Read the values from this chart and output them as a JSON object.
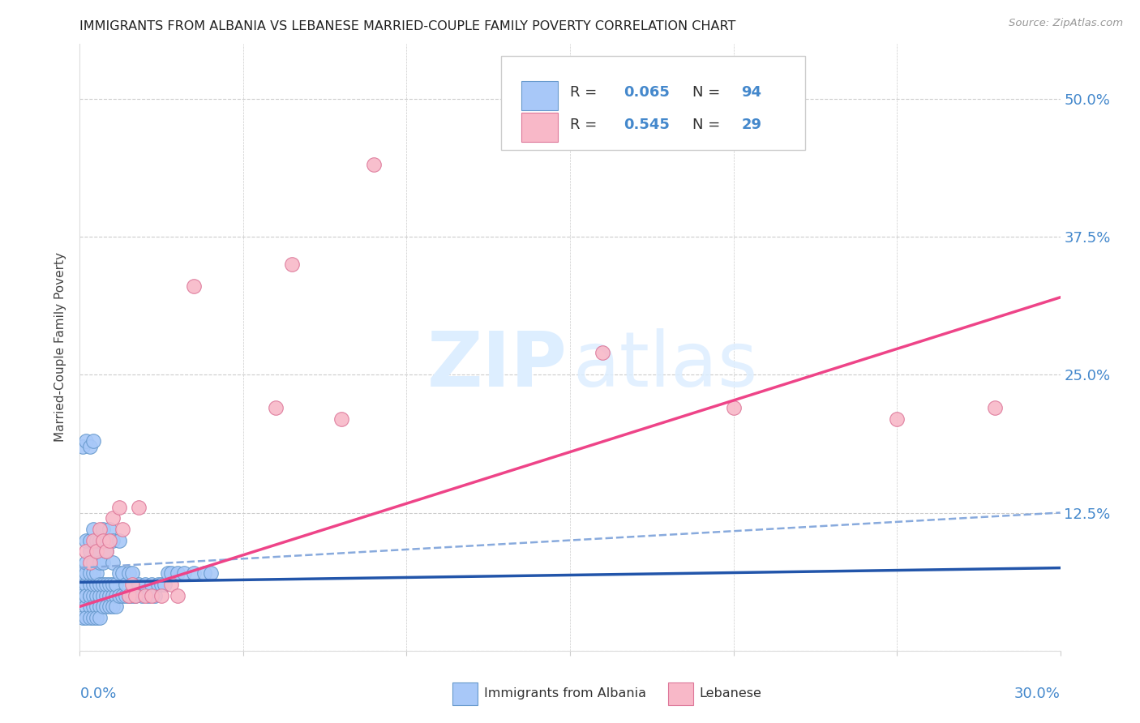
{
  "title": "IMMIGRANTS FROM ALBANIA VS LEBANESE MARRIED-COUPLE FAMILY POVERTY CORRELATION CHART",
  "source": "Source: ZipAtlas.com",
  "ylabel": "Married-Couple Family Poverty",
  "ytick_labels": [
    "",
    "12.5%",
    "25.0%",
    "37.5%",
    "50.0%"
  ],
  "ytick_values": [
    0.0,
    0.125,
    0.25,
    0.375,
    0.5
  ],
  "xlim": [
    0.0,
    0.3
  ],
  "ylim": [
    0.0,
    0.55
  ],
  "albania_R": 0.065,
  "albania_N": 94,
  "lebanese_R": 0.545,
  "lebanese_N": 29,
  "albania_color": "#a8c8f8",
  "albania_edge_color": "#6699cc",
  "albanian_line_color": "#2255aa",
  "lebanese_color": "#f8b8c8",
  "lebanese_edge_color": "#dd7799",
  "lebanese_line_color": "#ee4488",
  "dash_line_color": "#88aadd",
  "watermark_zip": "ZIP",
  "watermark_atlas": "atlas",
  "watermark_color": "#ddeeff",
  "legend_label_albania": "Immigrants from Albania",
  "legend_label_lebanese": "Lebanese",
  "albania_scatter_x": [
    0.001,
    0.001,
    0.001,
    0.001,
    0.002,
    0.002,
    0.002,
    0.002,
    0.002,
    0.002,
    0.002,
    0.003,
    0.003,
    0.003,
    0.003,
    0.003,
    0.003,
    0.003,
    0.004,
    0.004,
    0.004,
    0.004,
    0.004,
    0.004,
    0.005,
    0.005,
    0.005,
    0.005,
    0.005,
    0.005,
    0.006,
    0.006,
    0.006,
    0.006,
    0.006,
    0.007,
    0.007,
    0.007,
    0.007,
    0.008,
    0.008,
    0.008,
    0.008,
    0.009,
    0.009,
    0.009,
    0.01,
    0.01,
    0.01,
    0.01,
    0.011,
    0.011,
    0.011,
    0.012,
    0.012,
    0.013,
    0.013,
    0.014,
    0.014,
    0.015,
    0.015,
    0.016,
    0.016,
    0.017,
    0.018,
    0.019,
    0.02,
    0.021,
    0.022,
    0.023,
    0.024,
    0.025,
    0.026,
    0.027,
    0.028,
    0.03,
    0.032,
    0.035,
    0.038,
    0.04,
    0.002,
    0.003,
    0.004,
    0.005,
    0.006,
    0.007,
    0.008,
    0.009,
    0.01,
    0.012,
    0.001,
    0.002,
    0.003,
    0.004
  ],
  "albania_scatter_y": [
    0.06,
    0.05,
    0.03,
    0.07,
    0.05,
    0.04,
    0.06,
    0.03,
    0.07,
    0.05,
    0.08,
    0.05,
    0.04,
    0.06,
    0.03,
    0.07,
    0.05,
    0.09,
    0.05,
    0.04,
    0.06,
    0.03,
    0.07,
    0.08,
    0.05,
    0.04,
    0.06,
    0.03,
    0.07,
    0.09,
    0.05,
    0.04,
    0.06,
    0.03,
    0.08,
    0.05,
    0.04,
    0.06,
    0.08,
    0.05,
    0.04,
    0.06,
    0.09,
    0.05,
    0.04,
    0.06,
    0.05,
    0.04,
    0.06,
    0.08,
    0.05,
    0.04,
    0.06,
    0.05,
    0.07,
    0.05,
    0.07,
    0.05,
    0.06,
    0.05,
    0.07,
    0.05,
    0.07,
    0.05,
    0.06,
    0.05,
    0.06,
    0.05,
    0.06,
    0.05,
    0.06,
    0.06,
    0.06,
    0.07,
    0.07,
    0.07,
    0.07,
    0.07,
    0.07,
    0.07,
    0.1,
    0.1,
    0.11,
    0.1,
    0.1,
    0.11,
    0.1,
    0.11,
    0.1,
    0.1,
    0.185,
    0.19,
    0.185,
    0.19
  ],
  "lebanese_scatter_x": [
    0.002,
    0.003,
    0.004,
    0.005,
    0.006,
    0.007,
    0.008,
    0.009,
    0.01,
    0.012,
    0.013,
    0.015,
    0.016,
    0.017,
    0.018,
    0.02,
    0.022,
    0.025,
    0.028,
    0.03,
    0.035,
    0.06,
    0.065,
    0.08,
    0.09,
    0.16,
    0.2,
    0.25,
    0.28
  ],
  "lebanese_scatter_y": [
    0.09,
    0.08,
    0.1,
    0.09,
    0.11,
    0.1,
    0.09,
    0.1,
    0.12,
    0.13,
    0.11,
    0.05,
    0.06,
    0.05,
    0.13,
    0.05,
    0.05,
    0.05,
    0.06,
    0.05,
    0.33,
    0.22,
    0.35,
    0.21,
    0.44,
    0.27,
    0.22,
    0.21,
    0.22
  ],
  "alb_line_x": [
    0.0,
    0.3
  ],
  "alb_line_y": [
    0.062,
    0.075
  ],
  "leb_line_x": [
    0.0,
    0.3
  ],
  "leb_line_y": [
    0.04,
    0.32
  ],
  "dash_line_x": [
    0.0,
    0.3
  ],
  "dash_line_y": [
    0.075,
    0.125
  ]
}
